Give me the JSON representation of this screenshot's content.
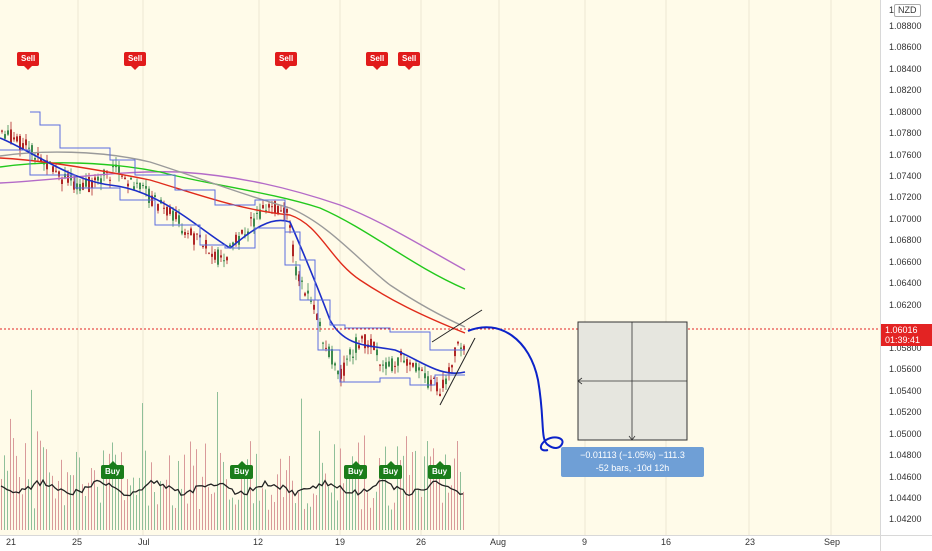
{
  "instrument": {
    "currency_label": "NZD",
    "last_price": "1.06016",
    "countdown": "01:39:41"
  },
  "price_axis": {
    "ticks": [
      "1.08800",
      "1.08600",
      "1.08400",
      "1.08200",
      "1.08000",
      "1.07800",
      "1.07600",
      "1.07400",
      "1.07200",
      "1.07000",
      "1.06800",
      "1.06600",
      "1.06400",
      "1.06200",
      "1.05800",
      "1.05600",
      "1.05400",
      "1.05200",
      "1.05000",
      "1.04800",
      "1.04600",
      "1.04400",
      "1.04200"
    ],
    "top_partial": "1."
  },
  "time_axis": {
    "ticks": [
      "21",
      "25",
      "Jul",
      "12",
      "19",
      "26",
      "Aug",
      "9",
      "16",
      "23",
      "Sep"
    ]
  },
  "signals": {
    "sell": [
      "Sell",
      "Sell",
      "Sell",
      "Sell",
      "Sell"
    ],
    "buy": [
      "Buy",
      "Buy",
      "Buy",
      "Buy",
      "Buy"
    ]
  },
  "measure": {
    "line1": "−0.01113 (−1.05%) −111.3",
    "line2": "-52 bars, -10d 12h"
  },
  "colors": {
    "background": "#fffbe9",
    "ma_red": "#e02b1b",
    "ma_green": "#22c91c",
    "ma_purple": "#b46bc8",
    "ma_gray": "#9a9a9a",
    "ma_blue": "#1c2ec8",
    "channel_blue": "#5b6ee0",
    "bull_candle": "#3e8a4f",
    "bear_candle": "#b02626",
    "price_line": "#e32323",
    "projection": "#0b22c9",
    "measure_box": "#6f9fd6"
  }
}
